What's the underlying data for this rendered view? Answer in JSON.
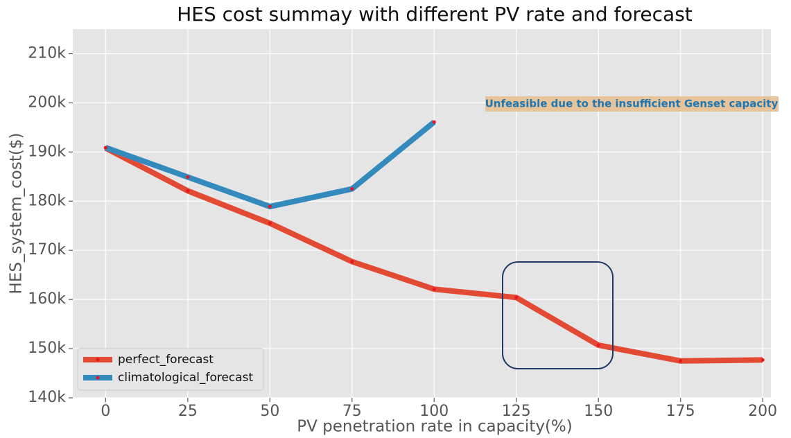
{
  "chart_data": {
    "type": "line",
    "title": "HES cost summay with different PV rate and forecast",
    "xlabel": "PV penetration rate in capacity(%)",
    "ylabel": "HES_system_cost($)",
    "annotation": "Unfeasible due to the insufficient Genset capacity",
    "x": [
      0,
      25,
      50,
      75,
      100,
      125,
      150,
      175,
      200
    ],
    "series": [
      {
        "name": "perfect_forecast",
        "color": "#e24a33",
        "values": [
          190800,
          182100,
          175500,
          167700,
          162100,
          160400,
          150700,
          147500,
          147700
        ]
      },
      {
        "name": "climatological_forecast",
        "color": "#348abd",
        "values": [
          190900,
          184900,
          178900,
          182500,
          196100,
          null,
          null,
          null,
          null
        ]
      }
    ],
    "marker_color": "#e8141e",
    "xlim": [
      -10,
      202.5
    ],
    "ylim": [
      140000,
      215000
    ],
    "xticks": [
      0,
      25,
      50,
      75,
      100,
      125,
      150,
      175,
      200
    ],
    "yticks": [
      {
        "value": 140000,
        "label": "140k"
      },
      {
        "value": 150000,
        "label": "150k"
      },
      {
        "value": 160000,
        "label": "160k"
      },
      {
        "value": 170000,
        "label": "170k"
      },
      {
        "value": 180000,
        "label": "180k"
      },
      {
        "value": 190000,
        "label": "190k"
      },
      {
        "value": 200000,
        "label": "200k"
      },
      {
        "value": 210000,
        "label": "210k"
      }
    ],
    "grid": true,
    "legend": "lower left"
  }
}
